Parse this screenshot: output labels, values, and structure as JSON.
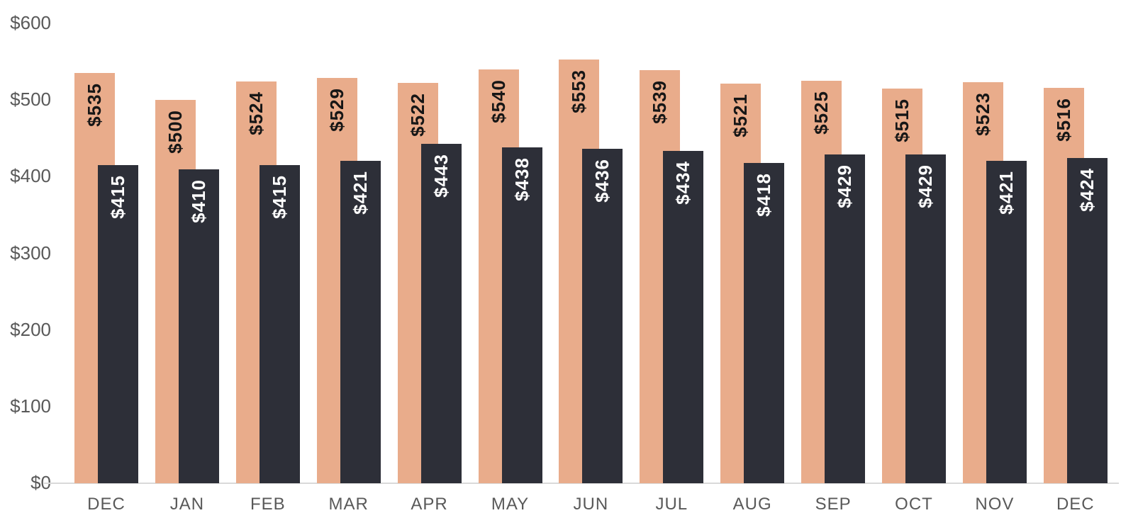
{
  "chart_data": {
    "type": "bar",
    "title": "",
    "xlabel": "",
    "ylabel": "",
    "categories": [
      "DEC",
      "JAN",
      "FEB",
      "MAR",
      "APR",
      "MAY",
      "JUN",
      "JUL",
      "AUG",
      "SEP",
      "OCT",
      "NOV",
      "DEC"
    ],
    "series": [
      {
        "name": "tan-series",
        "color": "#E9AC8B",
        "label_color": "#161616",
        "values": [
          535,
          500,
          524,
          529,
          522,
          540,
          553,
          539,
          521,
          525,
          515,
          523,
          516
        ],
        "labels": [
          "$535",
          "$500",
          "$524",
          "$529",
          "$522",
          "$540",
          "$553",
          "$539",
          "$521",
          "$525",
          "$515",
          "$523",
          "$516"
        ]
      },
      {
        "name": "dark-series",
        "color": "#2D2F38",
        "label_color": "#ffffff",
        "values": [
          415,
          410,
          415,
          421,
          443,
          438,
          436,
          434,
          418,
          429,
          429,
          421,
          424
        ],
        "labels": [
          "$415",
          "$410",
          "$415",
          "$421",
          "$443",
          "$438",
          "$436",
          "$434",
          "$418",
          "$429",
          "$429",
          "$421",
          "$424"
        ]
      }
    ],
    "value_prefix": "$",
    "y_ticks": [
      {
        "label": "$600",
        "value": 600
      },
      {
        "label": "$500",
        "value": 500
      },
      {
        "label": "$400",
        "value": 400
      },
      {
        "label": "$300",
        "value": 300
      },
      {
        "label": "$200",
        "value": 200
      },
      {
        "label": "$100",
        "value": 100
      },
      {
        "label": "$0",
        "value": 0
      }
    ],
    "ylim": [
      0,
      600
    ],
    "grid": false,
    "legend": "none",
    "axis_line_color": "#d9d9d9",
    "tick_label_color": "#595959"
  }
}
